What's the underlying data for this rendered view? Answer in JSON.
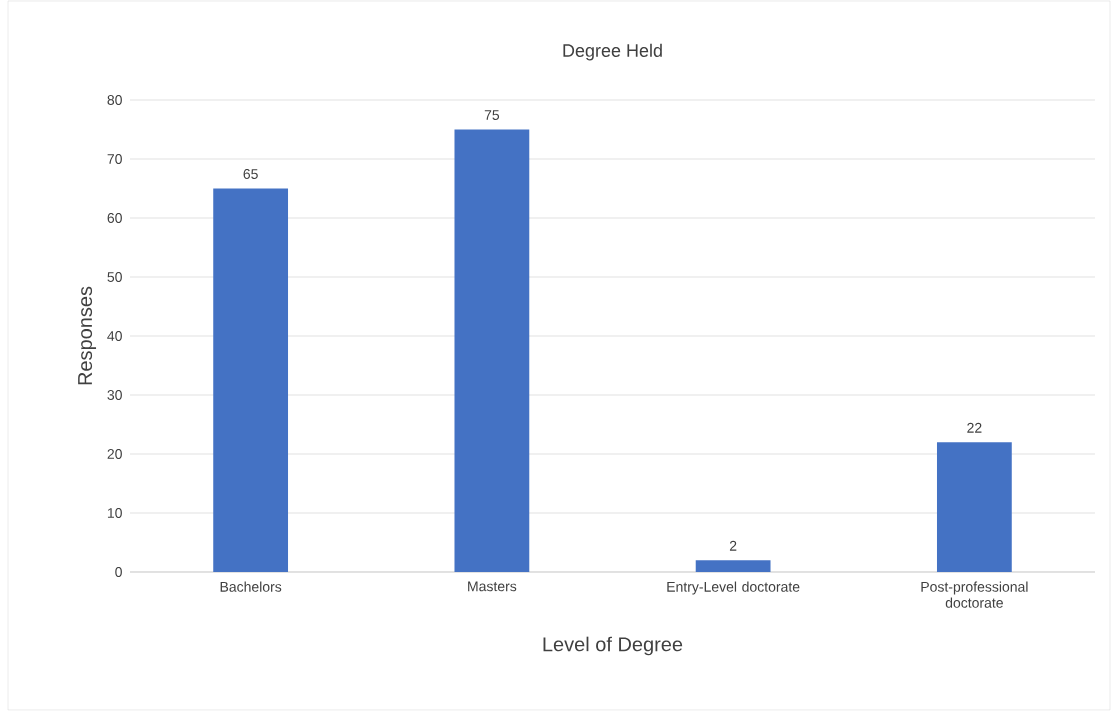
{
  "chart_data": {
    "type": "bar",
    "title": "Degree Held",
    "xlabel": "Level of Degree",
    "ylabel": "Responses",
    "categories": [
      "Bachelors",
      "Masters",
      "Entry-Level doctorate",
      "Post-professional doctorate"
    ],
    "values": [
      65,
      75,
      2,
      22
    ],
    "color": "#4472c4",
    "ylim": [
      0,
      80
    ],
    "yticks": [
      0,
      10,
      20,
      30,
      40,
      50,
      60,
      70,
      80
    ],
    "grid": "y",
    "data_labels": true
  }
}
